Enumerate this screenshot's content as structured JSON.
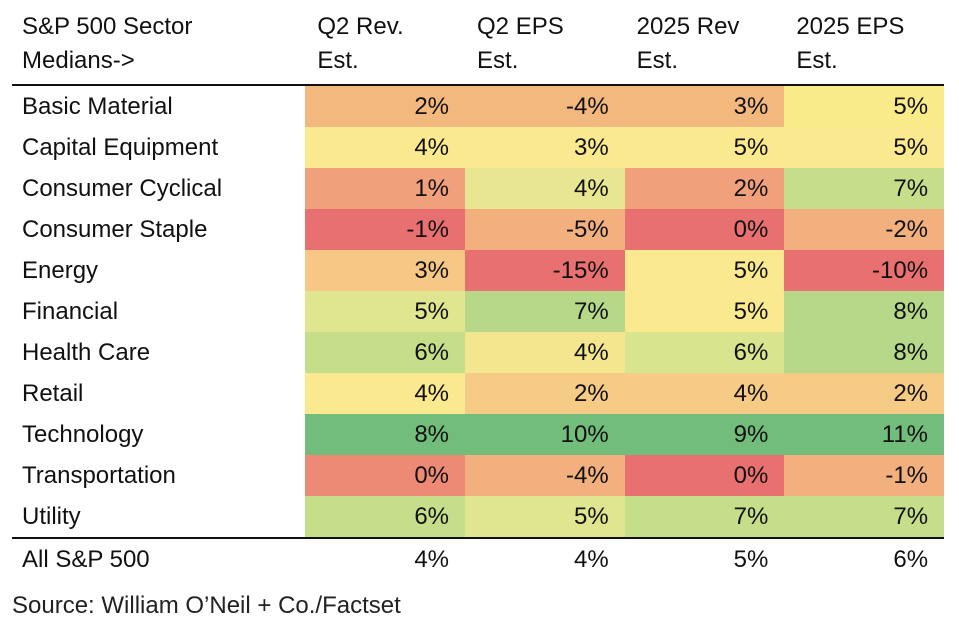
{
  "chart_data": {
    "type": "table",
    "columns": [
      "S&P 500 Sector Medians->",
      "Q2 Rev. Est.",
      "Q2 EPS Est.",
      "2025 Rev Est.",
      "2025 EPS Est."
    ],
    "header_lines": [
      [
        "S&P 500 Sector",
        "Medians->"
      ],
      [
        "Q2 Rev.",
        "Est."
      ],
      [
        "Q2 EPS",
        "Est."
      ],
      [
        "2025 Rev",
        "Est."
      ],
      [
        "2025 EPS",
        "Est."
      ]
    ],
    "rows": [
      {
        "sector": "Basic Material",
        "values": [
          "2%",
          "-4%",
          "3%",
          "5%"
        ],
        "colors": [
          "#f2b87e",
          "#f2b87e",
          "#f2b87e",
          "#f9eb8a"
        ]
      },
      {
        "sector": "Capital Equipment",
        "values": [
          "4%",
          "3%",
          "5%",
          "5%"
        ],
        "colors": [
          "#fae98f",
          "#fae98f",
          "#fae98f",
          "#fae98f"
        ]
      },
      {
        "sector": "Consumer Cyclical",
        "values": [
          "1%",
          "4%",
          "2%",
          "7%"
        ],
        "colors": [
          "#f0a07a",
          "#e8e691",
          "#f0a07a",
          "#c6de8a"
        ]
      },
      {
        "sector": "Consumer Staple",
        "values": [
          "-1%",
          "-5%",
          "0%",
          "-2%"
        ],
        "colors": [
          "#e87070",
          "#f2b07e",
          "#e87070",
          "#f2b07e"
        ]
      },
      {
        "sector": "Energy",
        "values": [
          "3%",
          "-15%",
          "5%",
          "-10%"
        ],
        "colors": [
          "#f6c785",
          "#e87070",
          "#fae98f",
          "#e87070"
        ]
      },
      {
        "sector": "Financial",
        "values": [
          "5%",
          "7%",
          "5%",
          "8%"
        ],
        "colors": [
          "#e0e68f",
          "#b6d888",
          "#fae98f",
          "#b6d888"
        ]
      },
      {
        "sector": "Health Care",
        "values": [
          "6%",
          "4%",
          "6%",
          "8%"
        ],
        "colors": [
          "#c6de8a",
          "#f4e68e",
          "#d8e48e",
          "#b6d888"
        ]
      },
      {
        "sector": "Retail",
        "values": [
          "4%",
          "2%",
          "4%",
          "2%"
        ],
        "colors": [
          "#fae98f",
          "#f6cb86",
          "#f6cb86",
          "#f6cb86"
        ]
      },
      {
        "sector": "Technology",
        "values": [
          "8%",
          "10%",
          "9%",
          "11%"
        ],
        "colors": [
          "#72bd7b",
          "#72bd7b",
          "#72bd7b",
          "#72bd7b"
        ]
      },
      {
        "sector": "Transportation",
        "values": [
          "0%",
          "-4%",
          "0%",
          "-1%"
        ],
        "colors": [
          "#ec8a76",
          "#f2b07e",
          "#e87070",
          "#f2b07e"
        ]
      },
      {
        "sector": "Utility",
        "values": [
          "6%",
          "5%",
          "7%",
          "7%"
        ],
        "colors": [
          "#c6de8a",
          "#e0e68f",
          "#c6de8a",
          "#c6de8a"
        ]
      }
    ],
    "total": {
      "sector": "All S&P 500",
      "values": [
        "4%",
        "4%",
        "5%",
        "6%"
      ]
    }
  },
  "source": "Source: William O’Neil + Co./Factset"
}
